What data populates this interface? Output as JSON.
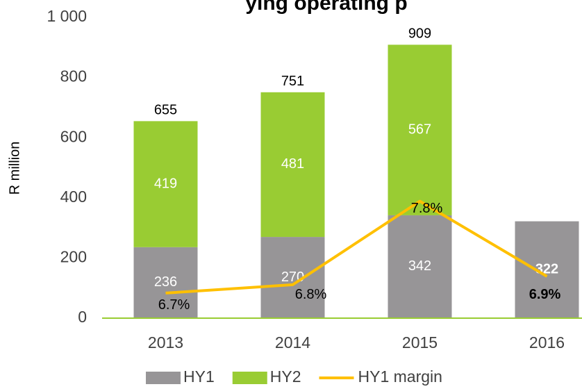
{
  "chart_data": {
    "type": "bar",
    "title": "ying operating p",
    "y_label": "R million",
    "categories": [
      "2013",
      "2014",
      "2015",
      "2016"
    ],
    "series": [
      {
        "name": "HY1",
        "color": "#979597",
        "values": [
          236,
          270,
          342,
          322
        ]
      },
      {
        "name": "HY2",
        "color": "#99cc33",
        "values": [
          419,
          481,
          567,
          null
        ]
      },
      {
        "name": "HY1 margin",
        "type": "line",
        "axis": "y2",
        "color": "#ffc000",
        "values": [
          6.7,
          6.8,
          7.8,
          6.9
        ],
        "value_labels": [
          "6.7%",
          "6.8%",
          "7.8%",
          "6.9%"
        ]
      }
    ],
    "totals": [
      655,
      751,
      909,
      null
    ],
    "ylim": [
      0,
      1000
    ],
    "yticks": [
      0,
      200,
      400,
      600,
      800,
      {
        "value": 1000,
        "label": "1 000"
      }
    ],
    "y2lim": [
      6.4,
      10.0
    ],
    "stacked": true,
    "grid": false,
    "legend": "bottom"
  }
}
